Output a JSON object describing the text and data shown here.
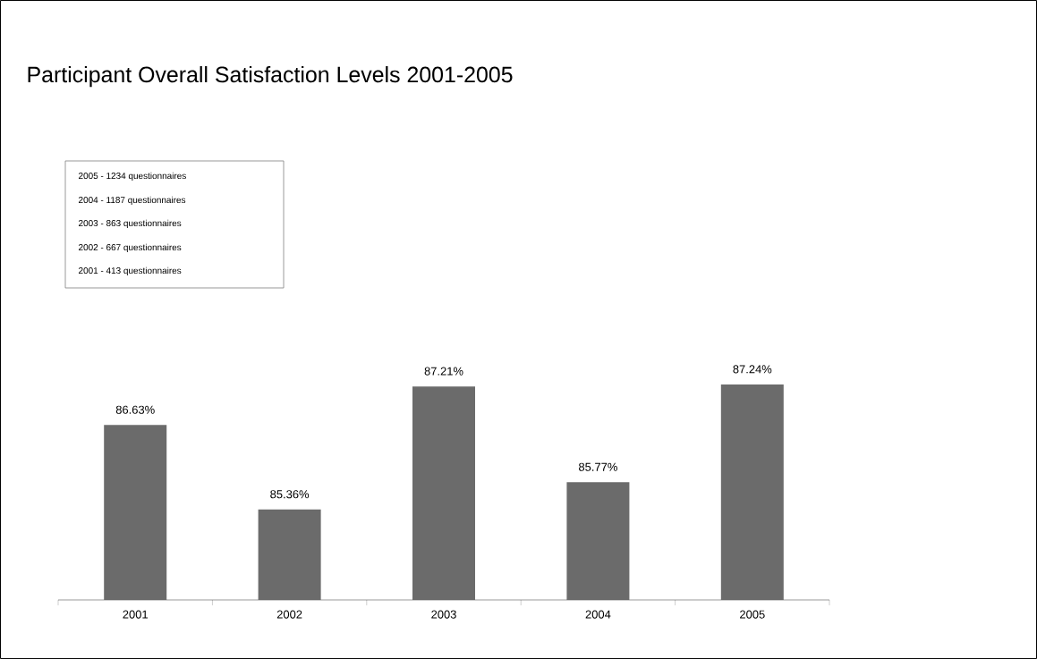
{
  "chart_data": {
    "type": "bar",
    "title": "Participant Overall Satisfaction Levels 2001-2005",
    "categories": [
      "2001",
      "2002",
      "2003",
      "2004",
      "2005"
    ],
    "values": [
      86.63,
      85.36,
      87.21,
      85.77,
      87.24
    ],
    "value_labels": [
      "86.63%",
      "85.36%",
      "87.21%",
      "85.77%",
      "87.24%"
    ],
    "color": "#6b6b6b",
    "ylim": [
      84,
      87.24
    ],
    "annotations": [
      "2005 - 1234 questionnaires",
      "2004 - 1187 questionnaires",
      "2003 - 863 questionnaires",
      "2002 - 667 questionnaires",
      "2001 - 413 questionnaires"
    ]
  }
}
